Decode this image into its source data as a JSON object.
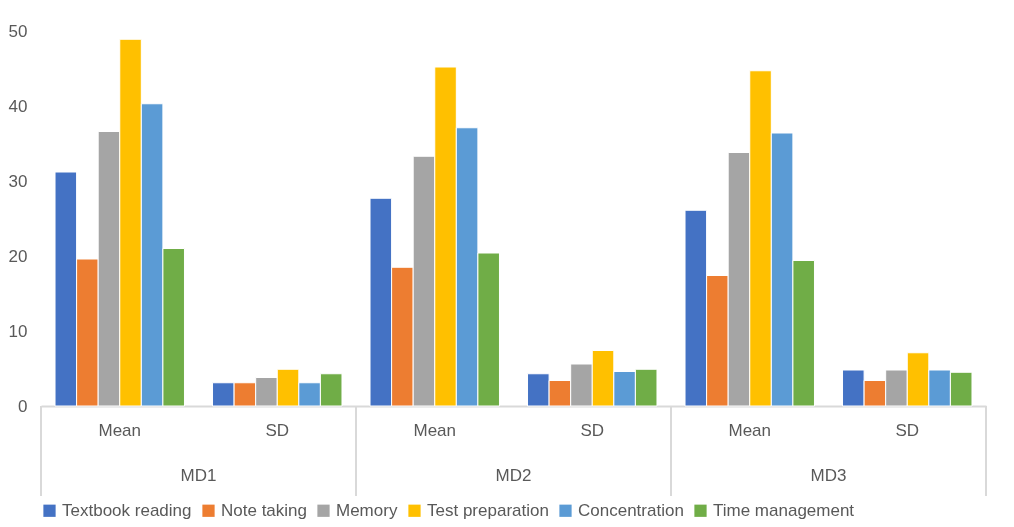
{
  "chart_data": {
    "type": "bar",
    "categories": [
      "Mean",
      "SD",
      "Mean",
      "SD",
      "Mean",
      "SD"
    ],
    "annotations": [
      "MD1",
      "MD2",
      "MD3"
    ],
    "ylim": [
      0,
      50
    ],
    "yticks": [
      0,
      10,
      20,
      30,
      40,
      50
    ],
    "grid": false,
    "legend": "bottom",
    "series": [
      {
        "name": "Textbook reading",
        "color": "#4472c4",
        "values": [
          31.2,
          3.1,
          27.7,
          4.3,
          26.1,
          4.8
        ]
      },
      {
        "name": "Note taking",
        "color": "#ed7d31",
        "values": [
          19.6,
          3.1,
          18.5,
          3.4,
          17.4,
          3.4
        ]
      },
      {
        "name": "Memory",
        "color": "#a5a5a5",
        "values": [
          36.6,
          3.8,
          33.3,
          5.6,
          33.8,
          4.8
        ]
      },
      {
        "name": "Test preparation",
        "color": "#ffc000",
        "values": [
          48.9,
          4.9,
          45.2,
          7.4,
          44.7,
          7.1
        ]
      },
      {
        "name": "Concentration",
        "color": "#5b9bd5",
        "values": [
          40.3,
          3.1,
          37.1,
          4.6,
          36.4,
          4.8
        ]
      },
      {
        "name": "Time management",
        "color": "#70ad47",
        "values": [
          21.0,
          4.3,
          20.4,
          4.9,
          19.4,
          4.5
        ]
      }
    ]
  }
}
